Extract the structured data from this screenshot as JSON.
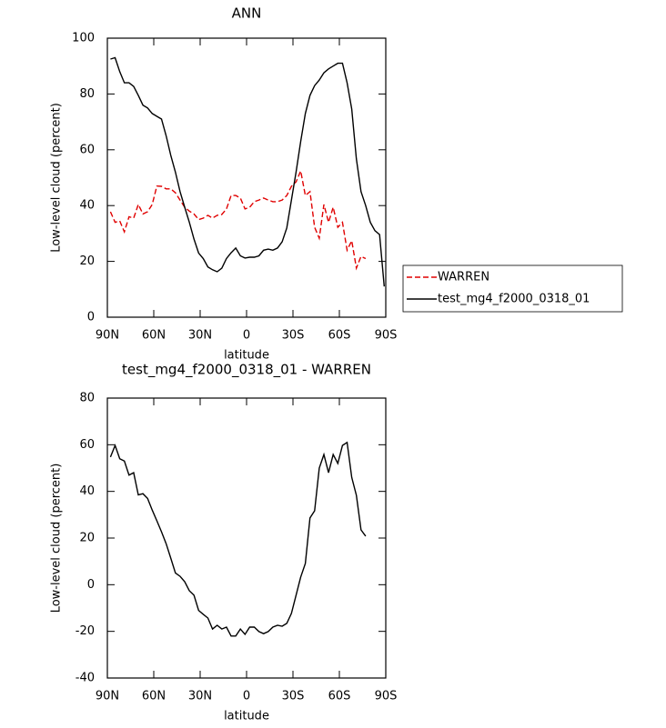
{
  "chart_data": [
    {
      "type": "line",
      "title": "ANN",
      "xlabel": "latitude",
      "ylabel": "Low-level cloud (percent)",
      "xlim": [
        90,
        -90
      ],
      "xticks": [
        {
          "value": 90,
          "label": "90N"
        },
        {
          "value": 60,
          "label": "60N"
        },
        {
          "value": 30,
          "label": "30N"
        },
        0,
        {
          "value": -30,
          "label": "30S"
        },
        {
          "value": -60,
          "label": "60S"
        },
        {
          "value": -90,
          "label": "90S"
        }
      ],
      "ylim": [
        0,
        100
      ],
      "yticks": [
        0,
        20,
        40,
        60,
        80,
        100
      ],
      "legend": "right",
      "series": [
        {
          "name": "WARREN",
          "color": "#e00000",
          "dashed": true,
          "x": [
            88,
            85,
            82,
            79,
            76,
            73,
            70,
            67,
            64,
            61,
            58,
            55,
            52,
            49,
            46,
            43,
            40,
            37,
            34,
            31,
            28,
            25,
            22,
            19,
            16,
            13,
            10,
            7,
            4,
            1,
            -2,
            -5,
            -8,
            -11,
            -14,
            -17,
            -20,
            -23,
            -26,
            -29,
            -32,
            -35,
            -38,
            -41,
            -44,
            -47,
            -50,
            -53,
            -56,
            -59,
            -62,
            -65,
            -68,
            -71,
            -74,
            -77
          ],
          "values": [
            37.8,
            34,
            34.5,
            30.6,
            36,
            35.5,
            40.4,
            37,
            37.8,
            40.4,
            47,
            46.9,
            46,
            46,
            44.6,
            42,
            39.4,
            38,
            37,
            35,
            35.5,
            36.5,
            35.5,
            36.5,
            36.8,
            38.8,
            43.6,
            43.6,
            42.7,
            38.8,
            39.4,
            41.4,
            42,
            42.7,
            42,
            41.4,
            41.4,
            42,
            43.6,
            46.9,
            48.5,
            52.4,
            43.6,
            45,
            32.2,
            28.3,
            40.4,
            34,
            39.4,
            32.2,
            34,
            24,
            27.4,
            17.6,
            21.8,
            21
          ]
        },
        {
          "name": "test_mg4_f2000_0318_01",
          "color": "#000000",
          "dashed": false,
          "x": [
            88,
            85,
            82,
            79,
            76,
            73,
            70,
            67,
            64,
            61,
            58,
            55,
            52,
            49,
            46,
            43,
            40,
            37,
            34,
            31,
            28,
            25,
            22,
            19,
            16,
            13,
            10,
            7,
            4,
            1,
            -2,
            -5,
            -8,
            -11,
            -14,
            -17,
            -20,
            -23,
            -26,
            -29,
            -32,
            -35,
            -38,
            -41,
            -44,
            -47,
            -50,
            -53,
            -56,
            -59,
            -62,
            -65,
            -68,
            -71,
            -74,
            -77,
            -80,
            -83,
            -86,
            -89
          ],
          "values": [
            92.5,
            93,
            88,
            84,
            84,
            82.7,
            79.5,
            76,
            75,
            73,
            72,
            71,
            65,
            58,
            52,
            45,
            39.4,
            34,
            28,
            23,
            21,
            18,
            17,
            16.3,
            17.6,
            21,
            23.1,
            24.8,
            22,
            21.2,
            21.5,
            21.5,
            22,
            24,
            24.4,
            24,
            24.8,
            27,
            32,
            42,
            52,
            63,
            73,
            79.5,
            83,
            85,
            87.6,
            89,
            90,
            91,
            91,
            84,
            74.6,
            56.7,
            45,
            40,
            34,
            31,
            29.6,
            11
          ]
        }
      ]
    },
    {
      "type": "line",
      "title": "test_mg4_f2000_0318_01 - WARREN",
      "xlabel": "latitude",
      "ylabel": "Low-level cloud (percent)",
      "xlim": [
        90,
        -90
      ],
      "xticks": [
        {
          "value": 90,
          "label": "90N"
        },
        {
          "value": 60,
          "label": "60N"
        },
        {
          "value": 30,
          "label": "30N"
        },
        0,
        {
          "value": -30,
          "label": "30S"
        },
        {
          "value": -60,
          "label": "60S"
        },
        {
          "value": -90,
          "label": "90S"
        }
      ],
      "ylim": [
        -40,
        80
      ],
      "yticks": [
        -40,
        -20,
        0,
        20,
        40,
        60,
        80
      ],
      "color": "#000000",
      "x": [
        88,
        85,
        82,
        79,
        76,
        73,
        70,
        67,
        64,
        61,
        58,
        55,
        52,
        49,
        46,
        43,
        40,
        37,
        34,
        31,
        28,
        25,
        22,
        19,
        16,
        13,
        10,
        7,
        4,
        1,
        -2,
        -5,
        -8,
        -11,
        -14,
        -17,
        -20,
        -23,
        -26,
        -29,
        -32,
        -35,
        -38,
        -41,
        -44,
        -47,
        -50,
        -53,
        -56,
        -59,
        -62,
        -65,
        -68,
        -71,
        -74,
        -77
      ],
      "values": [
        54.7,
        59.7,
        54,
        53,
        47,
        48,
        38.5,
        39,
        37,
        32,
        27.4,
        22.7,
        17.6,
        11.4,
        5,
        3.6,
        1.3,
        -2.6,
        -4.5,
        -11,
        -12.7,
        -14.3,
        -19,
        -17.4,
        -19,
        -18.2,
        -22,
        -22,
        -19,
        -21.3,
        -18.2,
        -18.2,
        -20.1,
        -21,
        -20.1,
        -18.2,
        -17.4,
        -17.8,
        -16.6,
        -12.3,
        -4.5,
        3.3,
        9.1,
        28.6,
        31.7,
        50,
        55.8,
        48,
        55.8,
        52,
        59.7,
        61,
        46,
        38.3,
        23.5,
        20.8
      ]
    }
  ]
}
